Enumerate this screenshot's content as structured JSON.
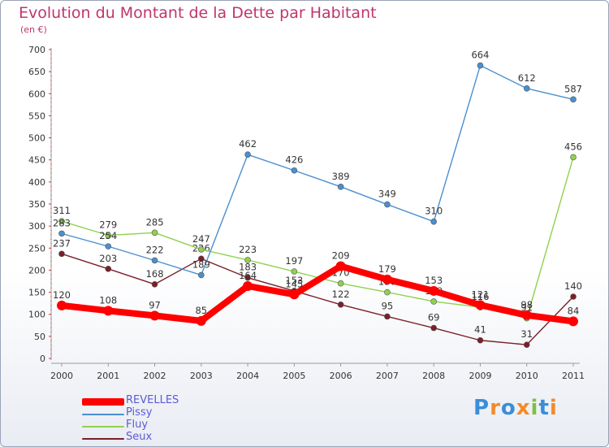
{
  "header": {
    "title": "Evolution du Montant de la Dette par Habitant",
    "unit": "(en €)"
  },
  "logo": {
    "chars": [
      "P",
      "r",
      "o",
      "x",
      "i",
      "t",
      "i"
    ],
    "colors": [
      "#3a8ed8",
      "#f28c28",
      "#3a8ed8",
      "#f28c28",
      "#7cc242",
      "#3a8ed8",
      "#f28c28"
    ]
  },
  "chart_data": {
    "type": "line",
    "title": "Evolution du Montant de la Dette par Habitant",
    "ylabel": "(en €)",
    "ylim": [
      0,
      700
    ],
    "yticks": [
      0,
      50,
      100,
      150,
      200,
      250,
      300,
      350,
      400,
      450,
      500,
      550,
      600,
      650,
      700
    ],
    "categories": [
      "2000",
      "2001",
      "2002",
      "2003",
      "2004",
      "2005",
      "2006",
      "2007",
      "2008",
      "2009",
      "2010",
      "2011"
    ],
    "legend_position": "bottom-left",
    "grid": false,
    "series": [
      {
        "name": "REVELLES",
        "color": "#ff0000",
        "values": [
          120,
          108,
          97,
          85,
          164,
          145,
          209,
          179,
          153,
          121,
          98,
          84
        ]
      },
      {
        "name": "Pissy",
        "color": "#4a8fd0",
        "values": [
          283,
          254,
          222,
          189,
          462,
          426,
          389,
          349,
          310,
          664,
          612,
          587
        ]
      },
      {
        "name": "Fluy",
        "color": "#8fd14f",
        "values": [
          311,
          279,
          285,
          247,
          223,
          197,
          170,
          150,
          129,
          116,
          91,
          456
        ]
      },
      {
        "name": "Seux",
        "color": "#7a1f28",
        "values": [
          237,
          203,
          168,
          226,
          183,
          153,
          122,
          95,
          69,
          41,
          31,
          140
        ]
      }
    ]
  }
}
